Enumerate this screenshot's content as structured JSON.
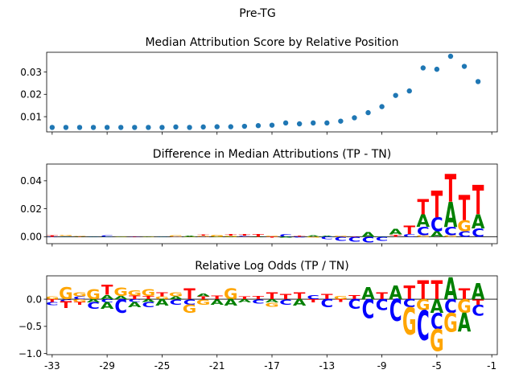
{
  "figure": {
    "suptitle": "Pre-TG"
  },
  "colors": {
    "A": "#008000",
    "C": "#0000ff",
    "G": "#ffa500",
    "T": "#ff0000",
    "dot": "#1f77b4"
  },
  "x_ticks": [
    -33,
    -29,
    -25,
    -21,
    -17,
    -13,
    -9,
    -5,
    -1
  ],
  "chart_data": [
    {
      "type": "scatter",
      "title": "Median Attribution Score by Relative Position",
      "xlabel": "",
      "ylabel": "",
      "xlim": [
        -33.4,
        -0.6
      ],
      "ylim": [
        0.0032,
        0.0388
      ],
      "yticks": [
        0.01,
        0.02,
        0.03
      ],
      "ytick_labels": [
        "0.01",
        "0.02",
        "0.03"
      ],
      "x": [
        -33,
        -32,
        -31,
        -30,
        -29,
        -28,
        -27,
        -26,
        -25,
        -24,
        -23,
        -22,
        -21,
        -20,
        -19,
        -18,
        -17,
        -16,
        -15,
        -14,
        -13,
        -12,
        -11,
        -10,
        -9,
        -8,
        -7,
        -6,
        -5,
        -4,
        -3,
        -2
      ],
      "y": [
        0.0052,
        0.0052,
        0.0052,
        0.0052,
        0.0052,
        0.0052,
        0.0052,
        0.0052,
        0.0052,
        0.0054,
        0.0052,
        0.0054,
        0.0055,
        0.0055,
        0.0057,
        0.006,
        0.0062,
        0.0072,
        0.0068,
        0.0072,
        0.0072,
        0.008,
        0.0095,
        0.0118,
        0.0145,
        0.0195,
        0.0215,
        0.0318,
        0.0312,
        0.037,
        0.0325,
        0.0257
      ]
    },
    {
      "type": "sequence-logo",
      "title": "Difference in Median Attributions (TP - TN)",
      "xlabel": "",
      "ylabel": "",
      "xlim": [
        -33.4,
        -0.6
      ],
      "ylim": [
        -0.005,
        0.052
      ],
      "yticks": [
        0.0,
        0.02,
        0.04
      ],
      "ytick_labels": [
        "0.00",
        "0.02",
        "0.04"
      ],
      "positions": [
        {
          "x": -33,
          "letters": [
            [
              "C",
              -0.0004
            ],
            [
              "T",
              0.0012
            ]
          ]
        },
        {
          "x": -32,
          "letters": [
            [
              "A",
              -0.0003
            ],
            [
              "G",
              0.0006
            ],
            [
              "C",
              0.0004
            ]
          ]
        },
        {
          "x": -31,
          "letters": [
            [
              "G",
              0.0005
            ],
            [
              "T",
              0.0004
            ],
            [
              "A",
              -0.0003
            ]
          ]
        },
        {
          "x": -30,
          "letters": [
            [
              "C",
              0.0004
            ],
            [
              "A",
              -0.0003
            ]
          ]
        },
        {
          "x": -29,
          "letters": [
            [
              "C",
              0.001
            ],
            [
              "A",
              -0.0003
            ]
          ]
        },
        {
          "x": -28,
          "letters": [
            [
              "A",
              0.0004
            ],
            [
              "G",
              -0.0003
            ]
          ]
        },
        {
          "x": -27,
          "letters": [
            [
              "C",
              0.0005
            ],
            [
              "T",
              -0.0003
            ]
          ]
        },
        {
          "x": -26,
          "letters": [
            [
              "G",
              0.0004
            ],
            [
              "A",
              -0.0003
            ]
          ]
        },
        {
          "x": -25,
          "letters": [
            [
              "A",
              0.0005
            ],
            [
              "C",
              -0.0003
            ]
          ]
        },
        {
          "x": -24,
          "letters": [
            [
              "G",
              0.0012
            ],
            [
              "C",
              -0.0005
            ]
          ]
        },
        {
          "x": -23,
          "letters": [
            [
              "A",
              0.0006
            ],
            [
              "G",
              -0.0004
            ]
          ]
        },
        {
          "x": -22,
          "letters": [
            [
              "T",
              0.0008
            ],
            [
              "G",
              0.0007
            ],
            [
              "C",
              -0.0004
            ]
          ]
        },
        {
          "x": -21,
          "letters": [
            [
              "G",
              0.0016
            ],
            [
              "A",
              -0.0004
            ]
          ]
        },
        {
          "x": -20,
          "letters": [
            [
              "T",
              0.001
            ],
            [
              "G",
              0.0008
            ],
            [
              "A",
              -0.0004
            ]
          ]
        },
        {
          "x": -19,
          "letters": [
            [
              "T",
              0.001
            ],
            [
              "C",
              0.0008
            ],
            [
              "G",
              -0.0004
            ]
          ]
        },
        {
          "x": -18,
          "letters": [
            [
              "T",
              0.002
            ],
            [
              "A",
              -0.0005
            ]
          ]
        },
        {
          "x": -17,
          "letters": [
            [
              "G",
              0.0008
            ],
            [
              "T",
              -0.0006
            ]
          ]
        },
        {
          "x": -16,
          "letters": [
            [
              "C",
              0.002
            ],
            [
              "A",
              -0.0006
            ]
          ]
        },
        {
          "x": -15,
          "letters": [
            [
              "T",
              0.0006
            ],
            [
              "C",
              -0.0008
            ]
          ]
        },
        {
          "x": -14,
          "letters": [
            [
              "A",
              0.0012
            ],
            [
              "G",
              -0.0008
            ]
          ]
        },
        {
          "x": -13,
          "letters": [
            [
              "A",
              0.0006
            ],
            [
              "C",
              -0.0018
            ]
          ]
        },
        {
          "x": -12,
          "letters": [
            [
              "G",
              0.0006
            ],
            [
              "C",
              -0.003
            ]
          ]
        },
        {
          "x": -11,
          "letters": [
            [
              "T",
              0.0004
            ],
            [
              "C",
              -0.0035
            ]
          ]
        },
        {
          "x": -10,
          "letters": [
            [
              "A",
              0.0035
            ],
            [
              "C",
              -0.004
            ]
          ]
        },
        {
          "x": -9,
          "letters": [
            [
              "A",
              0.0004
            ],
            [
              "C",
              -0.003
            ]
          ]
        },
        {
          "x": -8,
          "letters": [
            [
              "A",
              0.004
            ],
            [
              "T",
              0.0015
            ]
          ]
        },
        {
          "x": -7,
          "letters": [
            [
              "T",
              0.006
            ],
            [
              "C",
              0.002
            ]
          ]
        },
        {
          "x": -6,
          "letters": [
            [
              "T",
              0.011
            ],
            [
              "A",
              0.009
            ],
            [
              "C",
              0.006
            ],
            [
              "G",
              0.001
            ]
          ]
        },
        {
          "x": -5,
          "letters": [
            [
              "T",
              0.019
            ],
            [
              "C",
              0.01
            ],
            [
              "A",
              0.004
            ]
          ]
        },
        {
          "x": -4,
          "letters": [
            [
              "T",
              0.02
            ],
            [
              "A",
              0.018
            ],
            [
              "C",
              0.006
            ],
            [
              "G",
              0.001
            ]
          ]
        },
        {
          "x": -3,
          "letters": [
            [
              "T",
              0.018
            ],
            [
              "G",
              0.008
            ],
            [
              "C",
              0.004
            ]
          ]
        },
        {
          "x": -2,
          "letters": [
            [
              "T",
              0.021
            ],
            [
              "A",
              0.01
            ],
            [
              "C",
              0.006
            ]
          ]
        }
      ]
    },
    {
      "type": "sequence-logo",
      "title": "Relative Log Odds (TP / TN)",
      "xlabel": "",
      "ylabel": "",
      "xlim": [
        -33.4,
        -0.6
      ],
      "ylim": [
        -1.02,
        0.43
      ],
      "yticks": [
        -1.0,
        -0.5,
        0.0
      ],
      "ytick_labels": [
        "−1.0",
        "−0.5",
        "0.0"
      ],
      "positions": [
        {
          "x": -33,
          "letters": [
            [
              "G",
              0.05
            ],
            [
              "C",
              -0.06
            ],
            [
              "T",
              -0.05
            ]
          ]
        },
        {
          "x": -32,
          "letters": [
            [
              "G",
              0.22
            ],
            [
              "C",
              -0.04
            ],
            [
              "T",
              -0.12
            ]
          ]
        },
        {
          "x": -31,
          "letters": [
            [
              "G",
              0.08
            ],
            [
              "C",
              0.05
            ],
            [
              "G",
              -0.05
            ],
            [
              "T",
              -0.05
            ]
          ]
        },
        {
          "x": -30,
          "letters": [
            [
              "G",
              0.18
            ],
            [
              "A",
              -0.06
            ],
            [
              "C",
              -0.12
            ]
          ]
        },
        {
          "x": -29,
          "letters": [
            [
              "T",
              0.18
            ],
            [
              "A",
              0.08
            ],
            [
              "C",
              -0.06
            ],
            [
              "A",
              -0.12
            ]
          ]
        },
        {
          "x": -28,
          "letters": [
            [
              "G",
              0.15
            ],
            [
              "A",
              0.06
            ],
            [
              "C",
              -0.25
            ]
          ]
        },
        {
          "x": -27,
          "letters": [
            [
              "G",
              0.1
            ],
            [
              "T",
              0.07
            ],
            [
              "C",
              -0.05
            ],
            [
              "A",
              -0.1
            ]
          ]
        },
        {
          "x": -26,
          "letters": [
            [
              "G",
              0.12
            ],
            [
              "T",
              0.06
            ],
            [
              "A",
              -0.05
            ],
            [
              "C",
              -0.1
            ]
          ]
        },
        {
          "x": -25,
          "letters": [
            [
              "T",
              0.08
            ],
            [
              "G",
              0.05
            ],
            [
              "A",
              -0.12
            ]
          ]
        },
        {
          "x": -24,
          "letters": [
            [
              "G",
              0.08
            ],
            [
              "A",
              0.05
            ],
            [
              "C",
              -0.1
            ]
          ]
        },
        {
          "x": -23,
          "letters": [
            [
              "T",
              0.2
            ],
            [
              "C",
              -0.1
            ],
            [
              "G",
              -0.15
            ]
          ]
        },
        {
          "x": -22,
          "letters": [
            [
              "T",
              0.05
            ],
            [
              "A",
              0.05
            ],
            [
              "G",
              -0.1
            ]
          ]
        },
        {
          "x": -21,
          "letters": [
            [
              "T",
              0.07
            ],
            [
              "A",
              -0.1
            ]
          ]
        },
        {
          "x": -20,
          "letters": [
            [
              "G",
              0.2
            ],
            [
              "A",
              -0.12
            ]
          ]
        },
        {
          "x": -19,
          "letters": [
            [
              "T",
              0.05
            ],
            [
              "A",
              -0.06
            ]
          ]
        },
        {
          "x": -18,
          "letters": [
            [
              "T",
              0.06
            ],
            [
              "C",
              -0.08
            ]
          ]
        },
        {
          "x": -17,
          "letters": [
            [
              "T",
              0.12
            ],
            [
              "A",
              -0.06
            ],
            [
              "G",
              -0.08
            ]
          ]
        },
        {
          "x": -16,
          "letters": [
            [
              "T",
              0.1
            ],
            [
              "C",
              -0.1
            ]
          ]
        },
        {
          "x": -15,
          "letters": [
            [
              "T",
              0.12
            ],
            [
              "A",
              -0.12
            ]
          ]
        },
        {
          "x": -14,
          "letters": [
            [
              "C",
              0.08
            ],
            [
              "T",
              -0.06
            ]
          ]
        },
        {
          "x": -13,
          "letters": [
            [
              "T",
              0.1
            ],
            [
              "C",
              -0.15
            ]
          ]
        },
        {
          "x": -12,
          "letters": [
            [
              "G",
              0.06
            ],
            [
              "T",
              -0.05
            ]
          ]
        },
        {
          "x": -11,
          "letters": [
            [
              "T",
              0.08
            ],
            [
              "C",
              -0.18
            ]
          ]
        },
        {
          "x": -10,
          "letters": [
            [
              "A",
              0.22
            ],
            [
              "C",
              -0.35
            ]
          ]
        },
        {
          "x": -9,
          "letters": [
            [
              "T",
              0.12
            ],
            [
              "C",
              -0.2
            ]
          ]
        },
        {
          "x": -8,
          "letters": [
            [
              "A",
              0.25
            ],
            [
              "C",
              -0.4
            ]
          ]
        },
        {
          "x": -7,
          "letters": [
            [
              "T",
              0.25
            ],
            [
              "C",
              -0.15
            ],
            [
              "G",
              -0.5
            ]
          ]
        },
        {
          "x": -6,
          "letters": [
            [
              "T",
              0.35
            ],
            [
              "G",
              -0.2
            ],
            [
              "C",
              -0.55
            ]
          ]
        },
        {
          "x": -5,
          "letters": [
            [
              "T",
              0.35
            ],
            [
              "C",
              -0.3
            ],
            [
              "G",
              -0.4
            ],
            [
              "A",
              -0.25
            ]
          ]
        },
        {
          "x": -4,
          "letters": [
            [
              "A",
              0.4
            ],
            [
              "C",
              -0.25
            ],
            [
              "G",
              -0.35
            ]
          ]
        },
        {
          "x": -3,
          "letters": [
            [
              "T",
              0.2
            ],
            [
              "G",
              -0.25
            ],
            [
              "A",
              -0.35
            ]
          ]
        },
        {
          "x": -2,
          "letters": [
            [
              "A",
              0.3
            ],
            [
              "T",
              -0.1
            ],
            [
              "C",
              -0.2
            ]
          ]
        }
      ]
    }
  ]
}
